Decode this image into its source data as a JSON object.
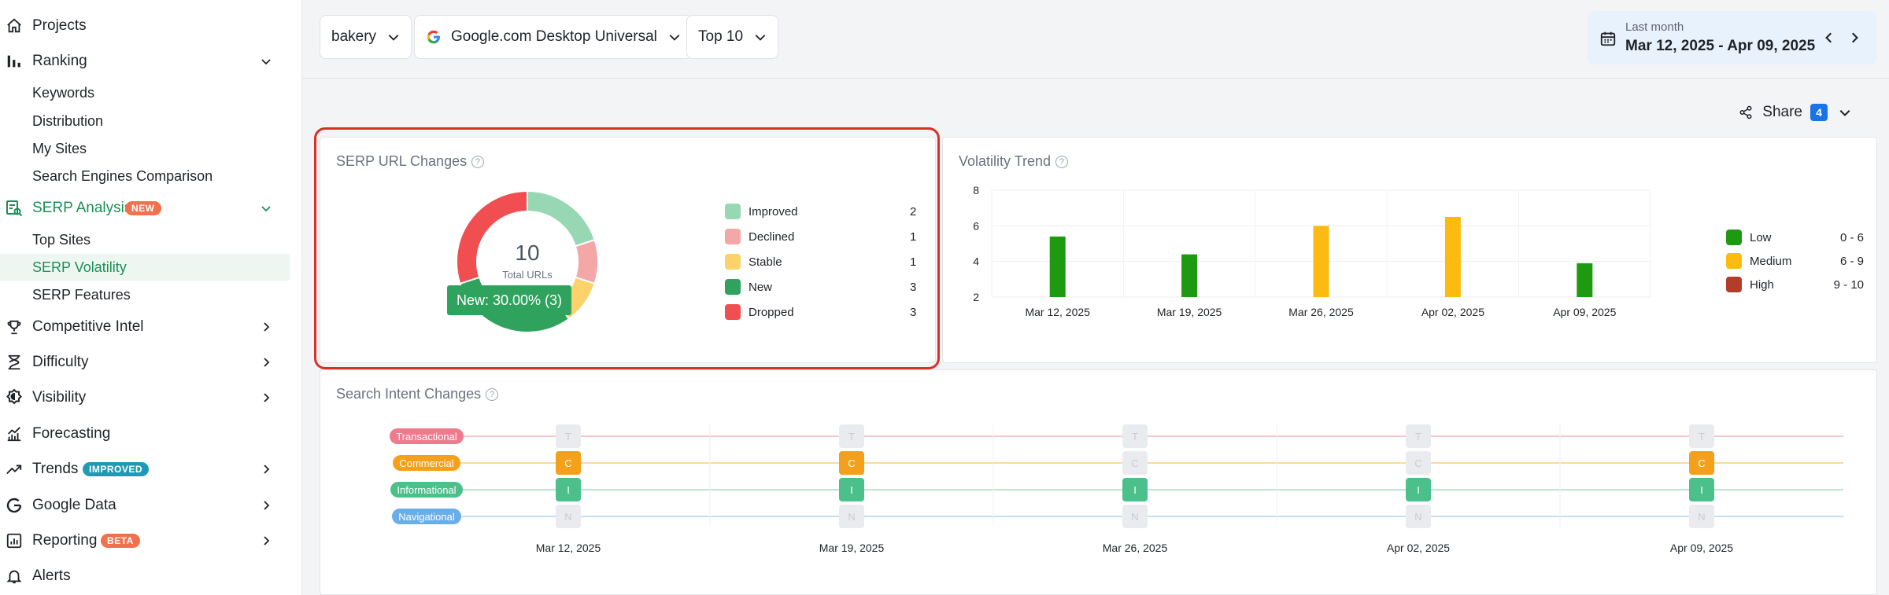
{
  "sidebar": {
    "items": [
      {
        "label": "Projects",
        "icon": "home-icon"
      },
      {
        "label": "Ranking",
        "icon": "bar-chart-icon"
      },
      {
        "label": "Keywords"
      },
      {
        "label": "Distribution"
      },
      {
        "label": "My Sites"
      },
      {
        "label": "Search Engines Comparison"
      },
      {
        "label": "SERP Analysis",
        "icon": "serp-analysis-icon",
        "badge": "NEW"
      },
      {
        "label": "Top Sites"
      },
      {
        "label": "SERP Volatility"
      },
      {
        "label": "SERP Features"
      },
      {
        "label": "Competitive Intel",
        "icon": "trophy-icon"
      },
      {
        "label": "Difficulty",
        "icon": "difficulty-icon"
      },
      {
        "label": "Visibility",
        "icon": "visibility-icon"
      },
      {
        "label": "Forecasting",
        "icon": "forecast-icon"
      },
      {
        "label": "Trends",
        "icon": "trend-icon",
        "badge": "IMPROVED"
      },
      {
        "label": "Google Data",
        "icon": "google-icon"
      },
      {
        "label": "Reporting",
        "icon": "report-icon",
        "badge": "BETA"
      },
      {
        "label": "Alerts",
        "icon": "bell-icon"
      }
    ]
  },
  "toolbar": {
    "keyword": "bakery",
    "engine": "Google.com Desktop Universal",
    "top": "Top 10",
    "date_range_label": "Last month",
    "date_range": "Mar 12, 2025 - Apr 09, 2025"
  },
  "share": {
    "label": "Share",
    "count": "4"
  },
  "serp_url_changes": {
    "title": "SERP URL Changes",
    "total": "10",
    "total_label": "Total URLs",
    "tooltip": "New: 30.00% (3)",
    "legend": [
      {
        "label": "Improved",
        "value": "2",
        "color": "#97d7b4"
      },
      {
        "label": "Declined",
        "value": "1",
        "color": "#f4a7a7"
      },
      {
        "label": "Stable",
        "value": "1",
        "color": "#fcd26a"
      },
      {
        "label": "New",
        "value": "3",
        "color": "#2fa35e"
      },
      {
        "label": "Dropped",
        "value": "3",
        "color": "#f04e51"
      }
    ]
  },
  "volatility_trend": {
    "title": "Volatility Trend",
    "legend": [
      {
        "label": "Low",
        "range": "0 - 6",
        "color": "#1e9a10"
      },
      {
        "label": "Medium",
        "range": "6 - 9",
        "color": "#fdbb12"
      },
      {
        "label": "High",
        "range": "9 - 10",
        "color": "#b23d28"
      }
    ]
  },
  "search_intent": {
    "title": "Search Intent Changes",
    "intents": [
      {
        "label": "Transactional",
        "letter": "T",
        "color": "#f07a8d",
        "line": "#f8c7cf"
      },
      {
        "label": "Commercial",
        "letter": "C",
        "color": "#f5a01a",
        "line": "#fbd9a3"
      },
      {
        "label": "Informational",
        "letter": "I",
        "color": "#4cc08a",
        "line": "#b7e7d0"
      },
      {
        "label": "Navigational",
        "letter": "N",
        "color": "#6aaee8",
        "line": "#c6def5"
      }
    ],
    "dates": [
      "Mar 12, 2025",
      "Mar 19, 2025",
      "Mar 26, 2025",
      "Apr 02, 2025",
      "Apr 09, 2025"
    ],
    "active": [
      [
        false,
        true,
        true,
        false
      ],
      [
        false,
        true,
        true,
        false
      ],
      [
        false,
        false,
        true,
        false
      ],
      [
        false,
        false,
        true,
        false
      ],
      [
        false,
        true,
        true,
        false
      ]
    ]
  },
  "chart_data": [
    {
      "type": "pie",
      "title": "SERP URL Changes",
      "categories": [
        "Improved",
        "Declined",
        "Stable",
        "New",
        "Dropped"
      ],
      "values": [
        2,
        1,
        1,
        3,
        3
      ]
    },
    {
      "type": "bar",
      "title": "Volatility Trend",
      "categories": [
        "Mar 12, 2025",
        "Mar 19, 2025",
        "Mar 26, 2025",
        "Apr 02, 2025",
        "Apr 09, 2025"
      ],
      "values": [
        5.4,
        4.4,
        6.0,
        6.5,
        3.9
      ],
      "colors": [
        "#1e9a10",
        "#1e9a10",
        "#fdbb12",
        "#fdbb12",
        "#1e9a10"
      ],
      "yticks": [
        "2",
        "4",
        "6",
        "8"
      ],
      "ylim": [
        2,
        8
      ],
      "grid": true,
      "legend": "right"
    }
  ]
}
